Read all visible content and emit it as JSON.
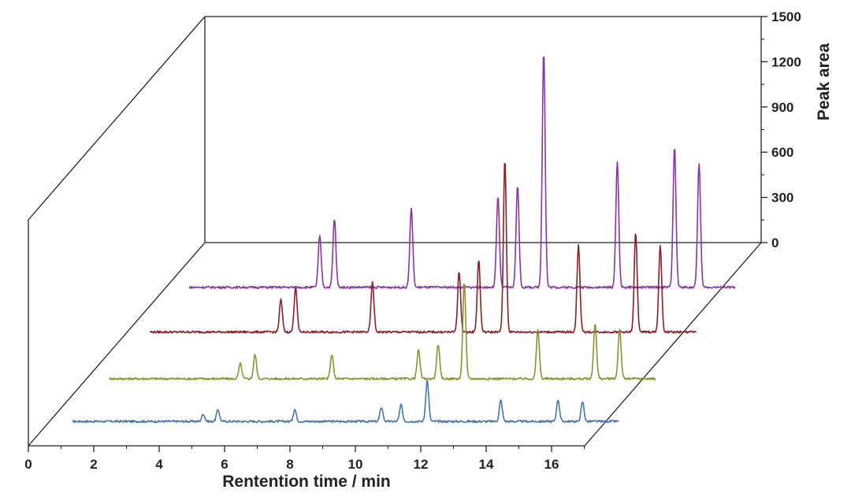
{
  "chart_data": {
    "type": "line",
    "title": "",
    "xlabel": "Rentention time / min",
    "ylabel": "Peak area",
    "xlim": [
      0,
      17
    ],
    "ylim": [
      0,
      1500
    ],
    "x_ticks": [
      0,
      2,
      4,
      6,
      8,
      10,
      12,
      14,
      16
    ],
    "y_ticks": [
      0,
      300,
      600,
      900,
      1200,
      1500
    ],
    "grid": false,
    "legend": "none",
    "series": [
      {
        "color": "#3f76b5",
        "range": [
          0.7,
          17.4
        ],
        "peaks": [
          {
            "x": 4.7,
            "y": 50
          },
          {
            "x": 5.15,
            "y": 80
          },
          {
            "x": 7.5,
            "y": 80
          },
          {
            "x": 10.15,
            "y": 95
          },
          {
            "x": 10.75,
            "y": 110
          },
          {
            "x": 11.55,
            "y": 275
          },
          {
            "x": 13.8,
            "y": 140
          },
          {
            "x": 15.55,
            "y": 145
          },
          {
            "x": 16.3,
            "y": 130
          }
        ]
      },
      {
        "color": "#8a9334",
        "range": [
          0.7,
          17.4
        ],
        "peaks": [
          {
            "x": 4.7,
            "y": 100
          },
          {
            "x": 5.15,
            "y": 160
          },
          {
            "x": 7.5,
            "y": 160
          },
          {
            "x": 10.15,
            "y": 190
          },
          {
            "x": 10.75,
            "y": 230
          },
          {
            "x": 11.55,
            "y": 640
          },
          {
            "x": 13.8,
            "y": 330
          },
          {
            "x": 15.55,
            "y": 370
          },
          {
            "x": 16.3,
            "y": 330
          }
        ]
      },
      {
        "color": "#8e1e24",
        "range": [
          0.7,
          17.4
        ],
        "peaks": [
          {
            "x": 4.7,
            "y": 215
          },
          {
            "x": 5.15,
            "y": 300
          },
          {
            "x": 7.5,
            "y": 330
          },
          {
            "x": 10.15,
            "y": 400
          },
          {
            "x": 10.75,
            "y": 480
          },
          {
            "x": 11.55,
            "y": 1140
          },
          {
            "x": 13.8,
            "y": 575
          },
          {
            "x": 15.55,
            "y": 660
          },
          {
            "x": 16.3,
            "y": 575
          }
        ]
      },
      {
        "color": "#8a34a6",
        "range": [
          0.7,
          17.4
        ],
        "peaks": [
          {
            "x": 4.7,
            "y": 340
          },
          {
            "x": 5.15,
            "y": 455
          },
          {
            "x": 7.5,
            "y": 525
          },
          {
            "x": 10.15,
            "y": 600
          },
          {
            "x": 10.75,
            "y": 680
          },
          {
            "x": 11.55,
            "y": 1570
          },
          {
            "x": 13.8,
            "y": 835
          },
          {
            "x": 15.55,
            "y": 930
          },
          {
            "x": 16.3,
            "y": 820
          }
        ]
      }
    ]
  }
}
